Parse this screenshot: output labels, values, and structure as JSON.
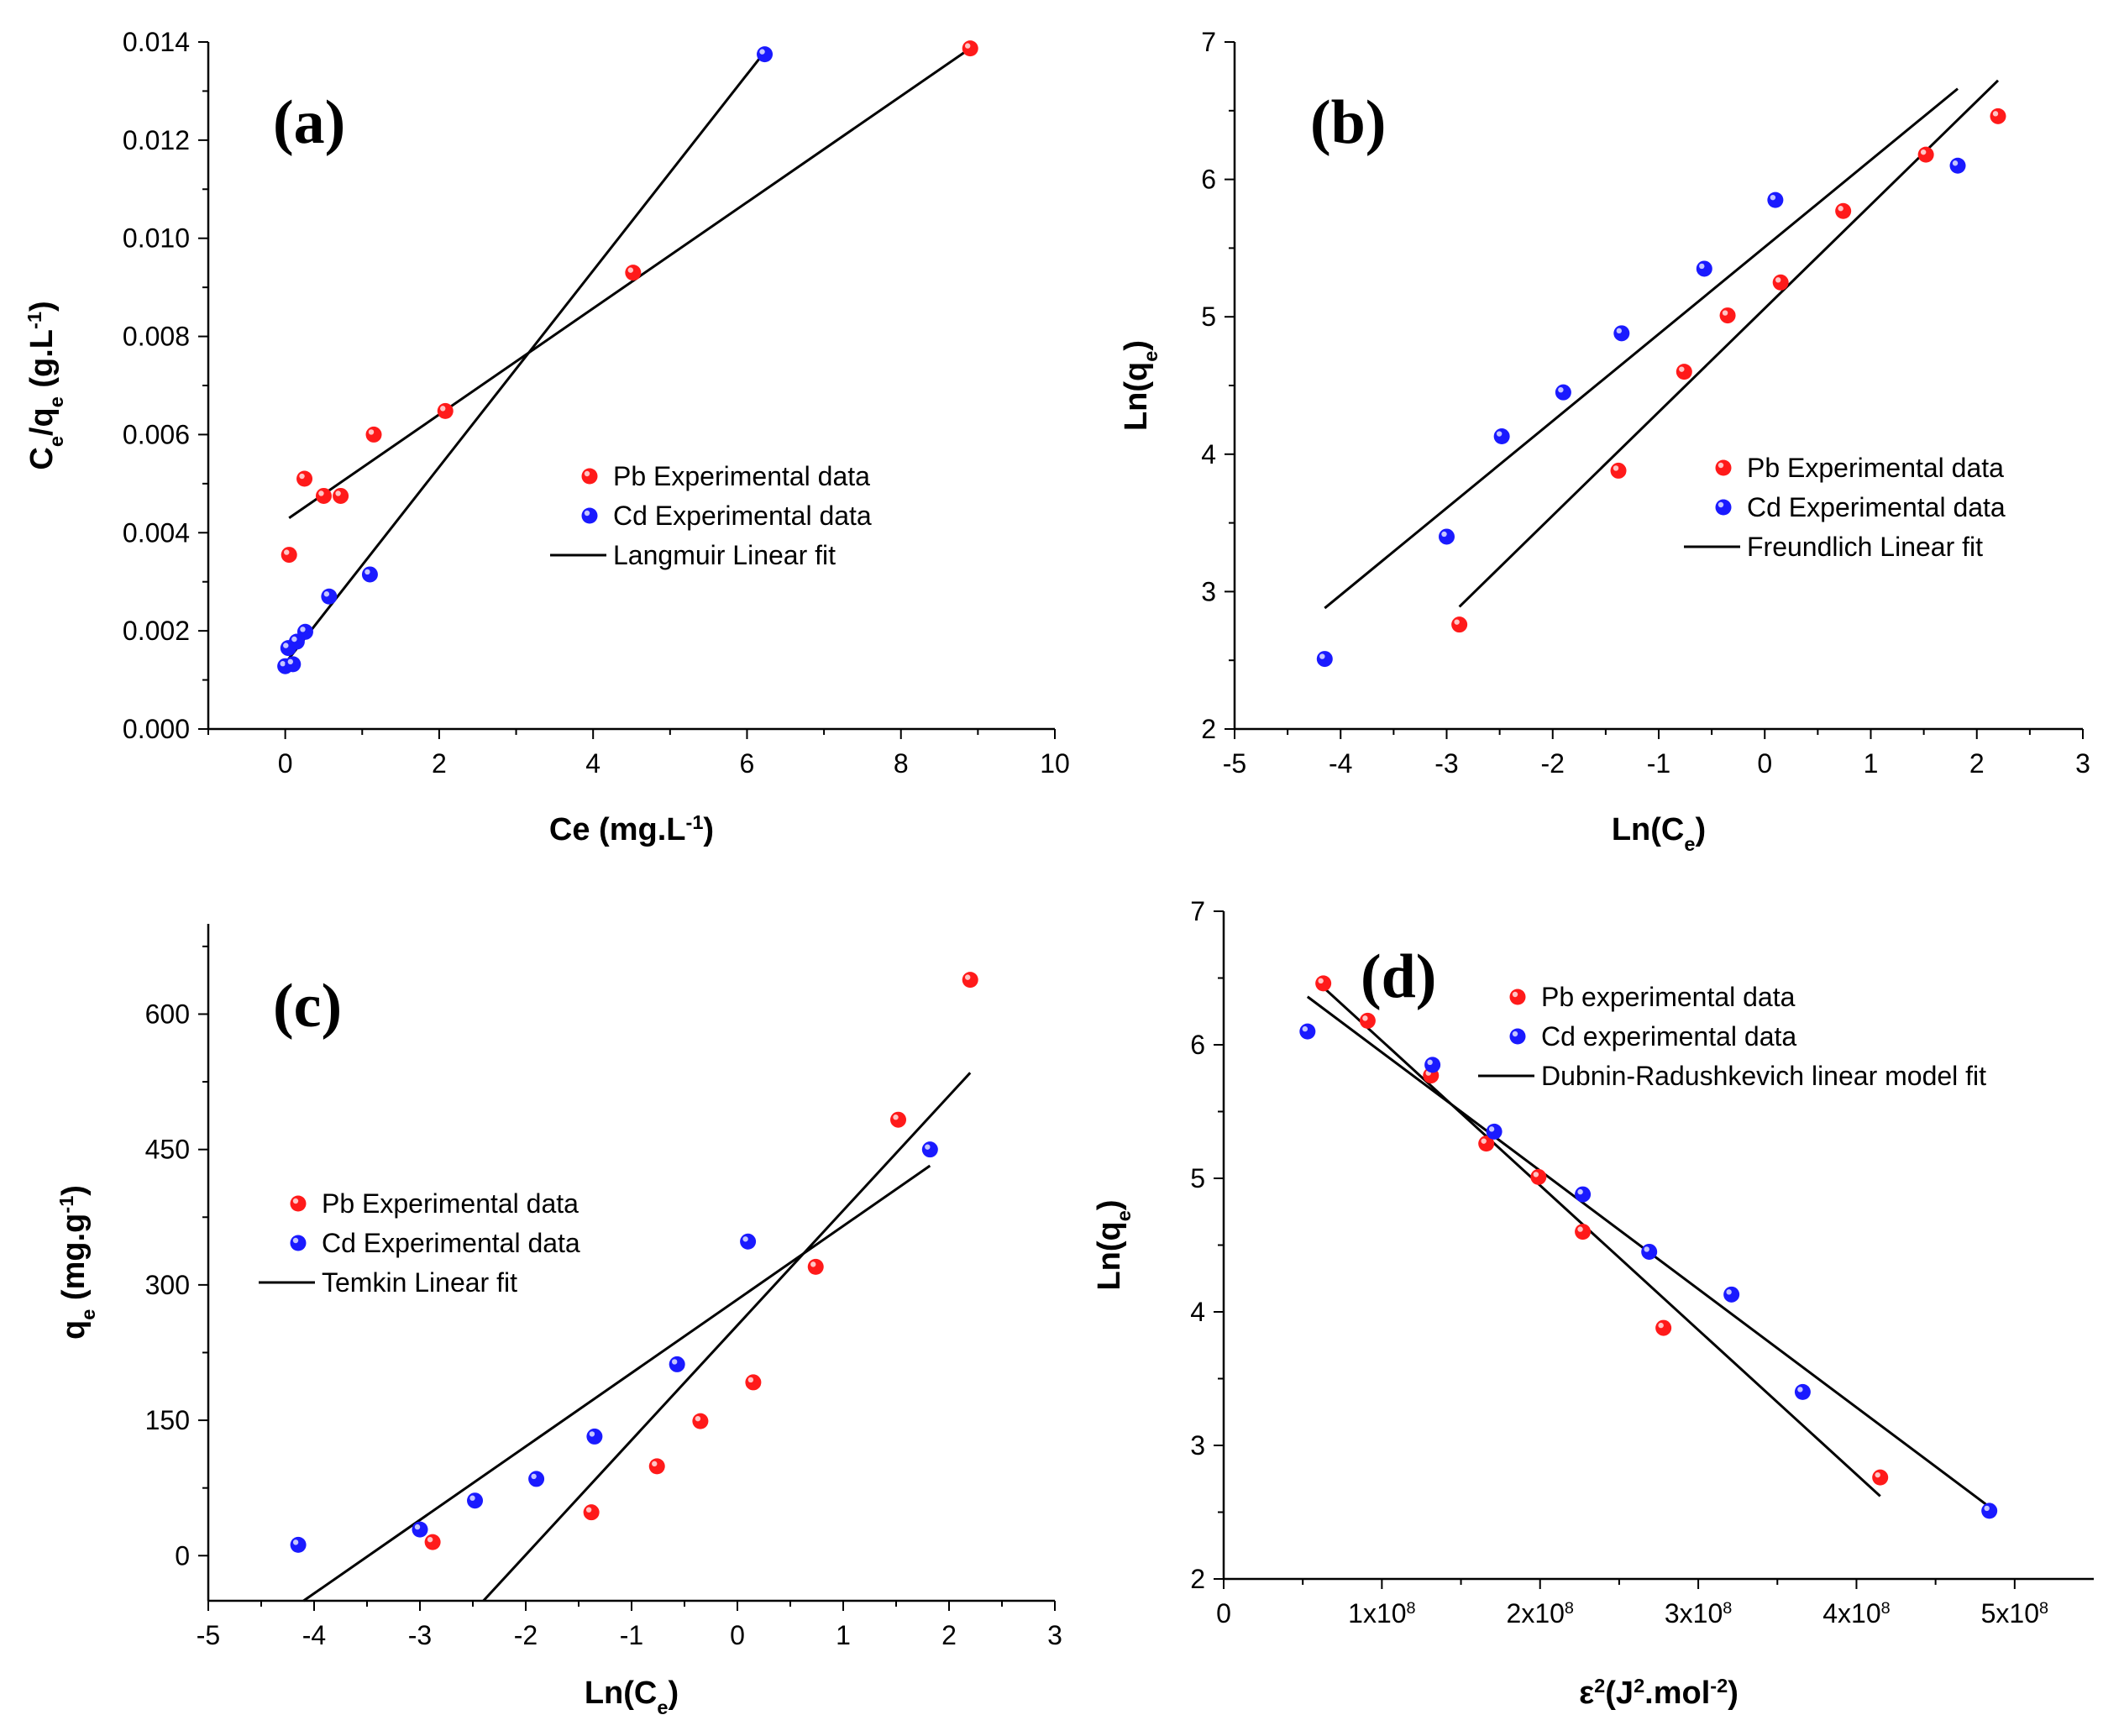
{
  "figure": {
    "colors": {
      "pb": "#ff1a1a",
      "cd": "#1a1aff",
      "fit": "#000000",
      "axis": "#000000"
    }
  },
  "chart_data": [
    {
      "id": "a",
      "type": "scatter",
      "panel_label": "(a)",
      "xlabel": "Ce (mg.L-1)",
      "ylabel": "Ce/qe (g.L-1)",
      "xlim": [
        -1,
        10
      ],
      "ylim": [
        0,
        0.014
      ],
      "xticks": [
        0,
        2,
        4,
        6,
        8,
        10
      ],
      "xtick_labels": [
        "0",
        "2",
        "4",
        "6",
        "8",
        "10"
      ],
      "yticks": [
        0,
        0.002,
        0.004,
        0.006,
        0.008,
        0.01,
        0.012,
        0.014
      ],
      "ytick_labels": [
        "0.000",
        "0.002",
        "0.004",
        "0.006",
        "0.008",
        "0.010",
        "0.012",
        "0.014"
      ],
      "legend_position": "center-right",
      "legend": [
        "Pb Experimental data",
        "Cd Experimental data",
        "Langmuir Linear fit"
      ],
      "series": [
        {
          "name": "Pb Experimental data",
          "color": "#ff1a1a",
          "points": [
            [
              0.05,
              0.00355
            ],
            [
              0.25,
              0.0051
            ],
            [
              0.5,
              0.00475
            ],
            [
              0.72,
              0.00475
            ],
            [
              1.15,
              0.006
            ],
            [
              2.08,
              0.00648
            ],
            [
              4.52,
              0.0093
            ],
            [
              8.9,
              0.01387
            ]
          ]
        },
        {
          "name": "Cd Experimental data",
          "color": "#1a1aff",
          "points": [
            [
              0.0,
              0.00128
            ],
            [
              0.1,
              0.00132
            ],
            [
              0.04,
              0.00165
            ],
            [
              0.15,
              0.00178
            ],
            [
              0.26,
              0.00198
            ],
            [
              0.57,
              0.0027
            ],
            [
              1.1,
              0.00315
            ],
            [
              6.23,
              0.01375
            ]
          ]
        }
      ],
      "fit_lines": [
        {
          "for": "Pb",
          "x": [
            0.05,
            8.9
          ],
          "y": [
            0.0043,
            0.01387
          ]
        },
        {
          "for": "Cd",
          "x": [
            0.02,
            6.18
          ],
          "y": [
            0.00138,
            0.0137
          ]
        }
      ]
    },
    {
      "id": "b",
      "type": "scatter",
      "panel_label": "(b)",
      "xlabel": "Ln(Ce)",
      "ylabel": "Ln(qe)",
      "xlim": [
        -5,
        3
      ],
      "ylim": [
        2,
        7
      ],
      "xticks": [
        -5,
        -4,
        -3,
        -2,
        -1,
        0,
        1,
        2,
        3
      ],
      "xtick_labels": [
        "-5",
        "-4",
        "-3",
        "-2",
        "-1",
        "0",
        "1",
        "2",
        "3"
      ],
      "yticks": [
        2,
        3,
        4,
        5,
        6,
        7
      ],
      "ytick_labels": [
        "2",
        "3",
        "4",
        "5",
        "6",
        "7"
      ],
      "legend_position": "center-right",
      "legend": [
        "Pb Experimental data",
        "Cd Experimental data",
        "Freundlich Linear fit"
      ],
      "series": [
        {
          "name": "Pb Experimental data",
          "color": "#ff1a1a",
          "points": [
            [
              -2.88,
              2.76
            ],
            [
              -1.38,
              3.88
            ],
            [
              -0.76,
              4.6
            ],
            [
              -0.35,
              5.01
            ],
            [
              0.15,
              5.25
            ],
            [
              0.74,
              5.77
            ],
            [
              1.52,
              6.18
            ],
            [
              2.2,
              6.46
            ]
          ]
        },
        {
          "name": "Cd Experimental data",
          "color": "#1a1aff",
          "points": [
            [
              -4.15,
              2.51
            ],
            [
              -3.0,
              3.4
            ],
            [
              -2.48,
              4.13
            ],
            [
              -1.9,
              4.45
            ],
            [
              -1.35,
              4.88
            ],
            [
              -0.57,
              5.35
            ],
            [
              0.1,
              5.85
            ],
            [
              1.82,
              6.1
            ]
          ]
        }
      ],
      "fit_lines": [
        {
          "for": "Cd",
          "x": [
            -4.15,
            1.82
          ],
          "y": [
            2.88,
            6.66
          ]
        },
        {
          "for": "Pb",
          "x": [
            -2.88,
            2.2
          ],
          "y": [
            2.89,
            6.72
          ]
        }
      ]
    },
    {
      "id": "c",
      "type": "scatter",
      "panel_label": "(c)",
      "xlabel": "Ln(Ce)",
      "ylabel": "qe (mg.g-1)",
      "xlim": [
        -5,
        3
      ],
      "ylim": [
        -50,
        700
      ],
      "xticks": [
        -5,
        -4,
        -3,
        -2,
        -1,
        0,
        1,
        2,
        3
      ],
      "xtick_labels": [
        "-5",
        "-4",
        "-3",
        "-2",
        "-1",
        "0",
        "1",
        "2",
        "3"
      ],
      "yticks": [
        0,
        150,
        300,
        450,
        600
      ],
      "ytick_labels": [
        "0",
        "150",
        "300",
        "450",
        "600"
      ],
      "legend_position": "center-left",
      "legend": [
        "Pb Experimental data",
        "Cd Experimental data",
        "Temkin Linear fit"
      ],
      "series": [
        {
          "name": "Pb Experimental data",
          "color": "#ff1a1a",
          "points": [
            [
              -2.88,
              15
            ],
            [
              -1.38,
              48
            ],
            [
              -0.76,
              99
            ],
            [
              -0.35,
              149
            ],
            [
              0.15,
              192
            ],
            [
              0.74,
              320
            ],
            [
              1.52,
              483
            ],
            [
              2.2,
              638
            ]
          ]
        },
        {
          "name": "Cd Experimental data",
          "color": "#1a1aff",
          "points": [
            [
              -4.15,
              12
            ],
            [
              -3.0,
              29
            ],
            [
              -2.48,
              61
            ],
            [
              -1.9,
              85
            ],
            [
              -1.35,
              132
            ],
            [
              -0.57,
              212
            ],
            [
              0.1,
              348
            ],
            [
              1.82,
              450
            ]
          ]
        }
      ],
      "fit_lines": [
        {
          "for": "Cd",
          "x": [
            -4.1,
            1.82
          ],
          "y": [
            -50,
            432
          ]
        },
        {
          "for": "Pb",
          "x": [
            -2.4,
            2.2
          ],
          "y": [
            -50,
            535
          ]
        }
      ]
    },
    {
      "id": "d",
      "type": "scatter",
      "panel_label": "(d)",
      "xlabel": "ε2(J2.mol-2)",
      "ylabel": "Ln(qe)",
      "xlim": [
        0,
        550000000
      ],
      "ylim": [
        2,
        7
      ],
      "xticks": [
        0,
        100000000,
        200000000,
        300000000,
        400000000,
        500000000
      ],
      "xtick_labels": [
        "0",
        "1x108",
        "2x108",
        "3x108",
        "4x108",
        "5x108"
      ],
      "yticks": [
        2,
        3,
        4,
        5,
        6,
        7
      ],
      "ytick_labels": [
        "2",
        "3",
        "4",
        "5",
        "6",
        "7"
      ],
      "legend_position": "top-right",
      "legend": [
        "Pb experimental data",
        "Cd experimental data",
        "Dubnin-Radushkevich linear model fit"
      ],
      "series": [
        {
          "name": "Pb experimental data",
          "color": "#ff1a1a",
          "points": [
            [
              63000000,
              6.46
            ],
            [
              91000000,
              6.18
            ],
            [
              131000000,
              5.77
            ],
            [
              166000000,
              5.26
            ],
            [
              199000000,
              5.01
            ],
            [
              227000000,
              4.6
            ],
            [
              278000000,
              3.88
            ],
            [
              415000000,
              2.76
            ]
          ]
        },
        {
          "name": "Cd experimental data",
          "color": "#1a1aff",
          "points": [
            [
              53000000,
              6.1
            ],
            [
              132000000,
              5.85
            ],
            [
              171000000,
              5.35
            ],
            [
              227000000,
              4.88
            ],
            [
              269000000,
              4.45
            ],
            [
              321000000,
              4.13
            ],
            [
              366000000,
              3.4
            ],
            [
              484000000,
              2.51
            ]
          ]
        }
      ],
      "fit_lines": [
        {
          "for": "Cd",
          "x": [
            53000000,
            484000000
          ],
          "y": [
            6.36,
            2.54
          ]
        },
        {
          "for": "Pb",
          "x": [
            63000000,
            415000000
          ],
          "y": [
            6.43,
            2.62
          ]
        }
      ]
    }
  ]
}
